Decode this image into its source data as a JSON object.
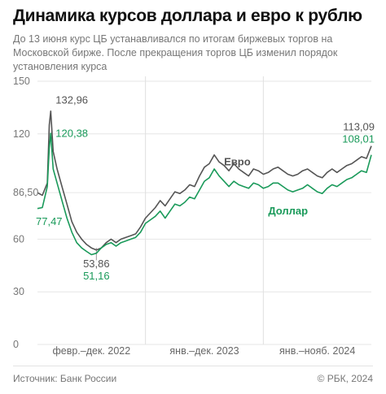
{
  "title": "Динамика курсов доллара и евро к рублю",
  "subtitle": "До 13 июня курс ЦБ устанавливался по итогам биржевых торгов на Московской бирже. После прекращения торгов ЦБ изменил порядок установления курса",
  "source": "Источник: Банк России",
  "credit": "© РБК, 2024",
  "chart_data": {
    "type": "line",
    "ylim": [
      0,
      150
    ],
    "yticks": [
      0,
      30,
      60,
      86.5,
      120,
      150
    ],
    "ytick_labels": [
      "0",
      "30",
      "60",
      "86,50",
      "120",
      "150"
    ],
    "x_periods": [
      "февр.–дек. 2022",
      "янв.–дек. 2023",
      "янв.–нояб. 2024"
    ],
    "xlim": [
      0,
      34
    ],
    "x_dividers": [
      11,
      23
    ],
    "colors": {
      "euro": "#555555",
      "dollar": "#1a9a5a"
    },
    "series": [
      {
        "key": "euro",
        "name": "Евро",
        "x": [
          0,
          0.5,
          1,
          1.2,
          1.35,
          1.6,
          2,
          2.5,
          3,
          3.5,
          4,
          4.5,
          5,
          5.5,
          6,
          6.5,
          7,
          7.5,
          8,
          8.5,
          9,
          9.5,
          10,
          10.5,
          11,
          11.5,
          12,
          12.5,
          13,
          13.5,
          14,
          14.5,
          15,
          15.5,
          16,
          16.5,
          17,
          17.5,
          18,
          18.5,
          19,
          19.5,
          20,
          20.5,
          21,
          21.5,
          22,
          22.5,
          23,
          23.5,
          24,
          24.5,
          25,
          25.5,
          26,
          26.5,
          27,
          27.5,
          28,
          28.5,
          29,
          29.5,
          30,
          30.5,
          31,
          31.5,
          32,
          32.5,
          33,
          33.5,
          34
        ],
        "y": [
          86.5,
          85,
          92,
          125,
          132.96,
          110,
          100,
          90,
          80,
          70,
          64,
          60,
          57,
          55,
          53.86,
          55,
          58,
          60,
          58,
          60,
          61,
          62,
          63,
          67,
          72,
          75,
          78,
          82,
          79,
          83,
          87,
          86,
          88,
          91,
          90,
          96,
          101,
          103,
          108,
          104,
          102,
          99,
          103,
          100,
          98,
          96,
          100,
          99,
          97,
          98,
          100,
          101,
          99,
          97,
          96,
          97,
          99,
          100,
          98,
          96,
          95,
          98,
          100,
          98,
          100,
          102,
          103,
          105,
          107,
          106,
          113.09
        ]
      },
      {
        "key": "dollar",
        "name": "Доллар",
        "x": [
          0,
          0.5,
          1,
          1.2,
          1.35,
          1.6,
          2,
          2.5,
          3,
          3.5,
          4,
          4.5,
          5,
          5.5,
          6,
          6.5,
          7,
          7.5,
          8,
          8.5,
          9,
          9.5,
          10,
          10.5,
          11,
          11.5,
          12,
          12.5,
          13,
          13.5,
          14,
          14.5,
          15,
          15.5,
          16,
          16.5,
          17,
          17.5,
          18,
          18.5,
          19,
          19.5,
          20,
          20.5,
          21,
          21.5,
          22,
          22.5,
          23,
          23.5,
          24,
          24.5,
          25,
          25.5,
          26,
          26.5,
          27,
          27.5,
          28,
          28.5,
          29,
          29.5,
          30,
          30.5,
          31,
          31.5,
          32,
          32.5,
          33,
          33.5,
          34
        ],
        "y": [
          77.47,
          78,
          90,
          112,
          120.38,
          100,
          92,
          82,
          72,
          64,
          58,
          55,
          53,
          51.16,
          52,
          55,
          57,
          58,
          56,
          58,
          59,
          60,
          61,
          64,
          69,
          71,
          73,
          76,
          72,
          76,
          80,
          79,
          81,
          84,
          83,
          88,
          93,
          95,
          100,
          96,
          93,
          90,
          93,
          91,
          90,
          89,
          92,
          91,
          89,
          90,
          92,
          92,
          90,
          88,
          87,
          88,
          89,
          91,
          89,
          87,
          86,
          89,
          91,
          90,
          92,
          94,
          95,
          97,
          99,
          98,
          108.01
        ]
      }
    ],
    "annotations": [
      {
        "key": "euro_max",
        "text": "132,96",
        "series": "euro"
      },
      {
        "key": "dollar_max",
        "text": "120,38",
        "series": "dollar"
      },
      {
        "key": "euro_min",
        "text": "53,86",
        "series": "euro"
      },
      {
        "key": "dollar_min",
        "text": "51,16",
        "series": "dollar"
      },
      {
        "key": "dollar_start",
        "text": "77,47",
        "series": "dollar"
      },
      {
        "key": "euro_end",
        "text": "113,09",
        "series": "euro"
      },
      {
        "key": "dollar_end",
        "text": "108,01",
        "series": "dollar"
      }
    ]
  }
}
